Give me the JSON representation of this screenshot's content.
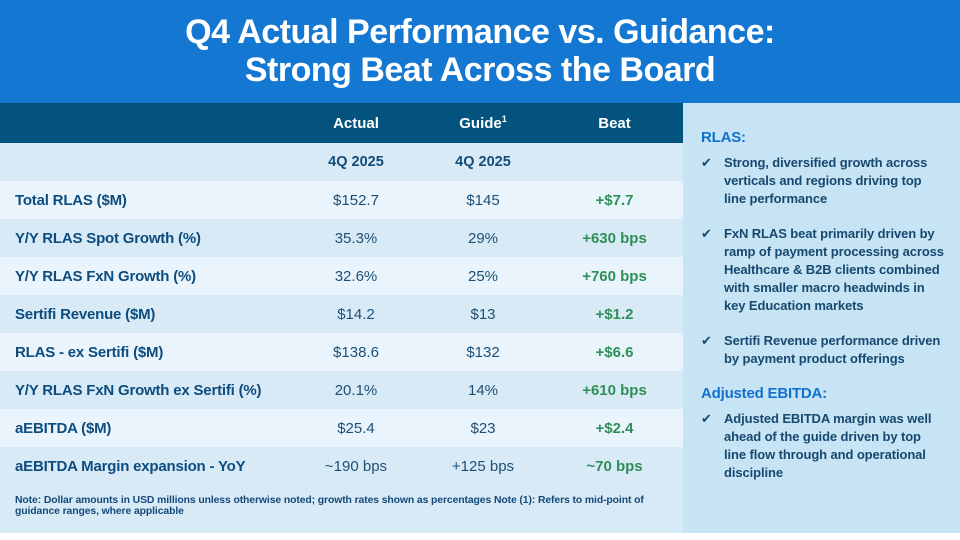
{
  "title": {
    "line1": "Q4 Actual Performance vs. Guidance:",
    "line2": "Strong Beat Across the Board"
  },
  "table": {
    "columns": {
      "actual": "Actual",
      "guide": "Guide",
      "guide_superscript": "1",
      "beat": "Beat"
    },
    "subheader": {
      "actual": "4Q 2025",
      "guide": "4Q 2025"
    },
    "rows": [
      {
        "label": "Total RLAS ($M)",
        "actual": "$152.7",
        "guide": "$145",
        "beat": "+$7.7"
      },
      {
        "label": "Y/Y RLAS Spot Growth (%)",
        "actual": "35.3%",
        "guide": "29%",
        "beat": "+630 bps"
      },
      {
        "label": "Y/Y RLAS FxN Growth (%)",
        "actual": "32.6%",
        "guide": "25%",
        "beat": "+760 bps"
      },
      {
        "label": "Sertifi Revenue ($M)",
        "actual": "$14.2",
        "guide": "$13",
        "beat": "+$1.2"
      },
      {
        "label": "RLAS - ex Sertifi ($M)",
        "actual": "$138.6",
        "guide": "$132",
        "beat": "+$6.6"
      },
      {
        "label": "Y/Y RLAS FxN Growth ex Sertifi (%)",
        "actual": "20.1%",
        "guide": "14%",
        "beat": "+610 bps"
      },
      {
        "label": "aEBITDA ($M)",
        "actual": "$25.4",
        "guide": "$23",
        "beat": "+$2.4"
      },
      {
        "label": "aEBITDA Margin expansion - YoY",
        "actual": "~190 bps",
        "guide": "+125 bps",
        "beat": "~70 bps"
      }
    ],
    "footnote": "Note: Dollar amounts in USD millions unless otherwise noted; growth rates shown as percentages  Note (1): Refers to mid-point of guidance ranges, where applicable"
  },
  "sidebar": {
    "bullet_icon": "✔",
    "sections": [
      {
        "heading": "RLAS:",
        "bullets": [
          "Strong, diversified growth across verticals and regions driving top line performance",
          "FxN RLAS beat primarily driven by ramp of payment processing across Healthcare & B2B clients combined with smaller macro headwinds in key Education markets",
          "Sertifi Revenue performance driven by payment product offerings"
        ]
      },
      {
        "heading": "Adjusted EBITDA:",
        "bullets": [
          "Adjusted EBITDA margin was well ahead of the guide driven by top line flow through and operational discipline"
        ]
      }
    ]
  },
  "colors": {
    "title_band_blue": "#1478D2",
    "table_header_navy": "#04537F",
    "row_light": "#EAF4FC",
    "row_medium": "#D9EAF7",
    "sidebar_bg": "#C6E4F4",
    "label_navy": "#0D4C7E",
    "beat_green": "#2F8F58",
    "sidebar_heading_blue": "#1371CE"
  }
}
